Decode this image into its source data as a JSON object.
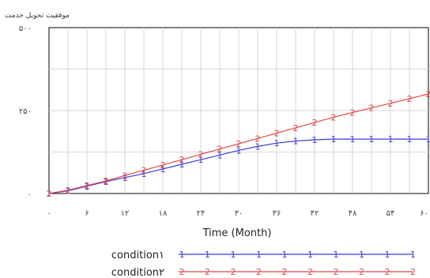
{
  "chart_data": {
    "type": "line",
    "title": "",
    "ylabel": "موفقیت تحویل خدمت",
    "xlabel": "Time (Month)",
    "xlim": [
      0,
      60
    ],
    "ylim": [
      0,
      500
    ],
    "x_ticks": [
      0,
      6,
      12,
      18,
      24,
      30,
      36,
      42,
      48,
      54,
      60
    ],
    "x_tick_labels": [
      "۰",
      "۶",
      "۱۲",
      "۱۸",
      "۲۴",
      "۳۰",
      "۳۶",
      "۴۲",
      "۴۸",
      "۵۴",
      "۶۰"
    ],
    "y_ticks": [
      0,
      250,
      500
    ],
    "y_tick_labels": [
      "۰",
      "۲۵۰",
      "۵۰۰"
    ],
    "grid": true,
    "legend_position": "bottom",
    "series": [
      {
        "name": "condition۱",
        "color": "#3a3adf",
        "marker": "1",
        "x": [
          0,
          3,
          6,
          9,
          12,
          15,
          18,
          21,
          24,
          27,
          30,
          33,
          36,
          39,
          42,
          45,
          48,
          51,
          54,
          57,
          60
        ],
        "y": [
          0,
          8,
          22,
          36,
          48,
          60,
          74,
          88,
          102,
          116,
          130,
          142,
          152,
          158,
          162,
          164,
          164,
          164,
          164,
          164,
          164
        ]
      },
      {
        "name": "condition۲",
        "color": "#e14b4b",
        "marker": "2",
        "x": [
          0,
          3,
          6,
          9,
          12,
          15,
          18,
          21,
          24,
          27,
          30,
          33,
          36,
          39,
          42,
          45,
          48,
          51,
          54,
          57,
          60
        ],
        "y": [
          0,
          10,
          24,
          38,
          54,
          70,
          86,
          102,
          118,
          134,
          150,
          166,
          182,
          198,
          214,
          230,
          244,
          258,
          272,
          286,
          300
        ]
      }
    ]
  }
}
